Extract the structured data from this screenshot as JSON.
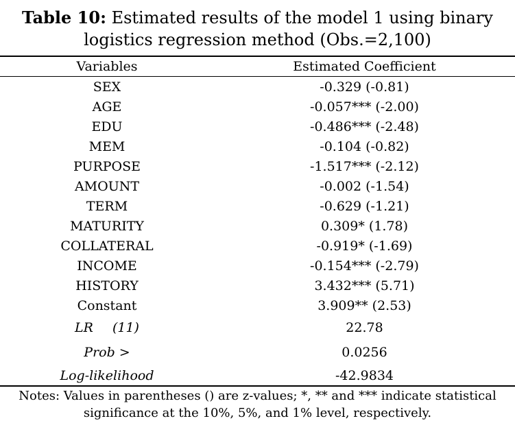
{
  "caption": {
    "label": "Table 10:",
    "line1": "Estimated results of the model 1 using binary",
    "line2": "logistics regression method (Obs.=2,100)"
  },
  "headers": {
    "variables": "Variables",
    "coefficient": "Estimated Coefficient"
  },
  "rows": [
    {
      "variable": "SEX",
      "coefficient": "-0.329 (-0.81)"
    },
    {
      "variable": "AGE",
      "coefficient": "-0.057*** (-2.00)"
    },
    {
      "variable": "EDU",
      "coefficient": "-0.486*** (-2.48)"
    },
    {
      "variable": "MEM",
      "coefficient": "-0.104 (-0.82)"
    },
    {
      "variable": "PURPOSE",
      "coefficient": "-1.517*** (-2.12)"
    },
    {
      "variable": "AMOUNT",
      "coefficient": "-0.002 (-1.54)"
    },
    {
      "variable": "TERM",
      "coefficient": "-0.629 (-1.21)"
    },
    {
      "variable": "MATURITY",
      "coefficient": "0.309* (1.78)"
    },
    {
      "variable": "COLLATERAL",
      "coefficient": "-0.919* (-1.69)"
    },
    {
      "variable": "INCOME",
      "coefficient": "-0.154*** (-2.79)"
    },
    {
      "variable": "HISTORY",
      "coefficient": "3.432*** (5.71)"
    },
    {
      "variable": "Constant",
      "coefficient": "3.909** (2.53)"
    }
  ],
  "stats": {
    "lr_label": "LR",
    "lr_df": "(11)",
    "lr_value": "22.78",
    "prob_label": "Prob >",
    "prob_value": "0.0256",
    "loglik_label": "Log-likelihood",
    "loglik_value": "-42.9834"
  },
  "notes": {
    "line1": "Notes: Values in parentheses () are z-values; *, ** and *** indicate statistical",
    "line2": "significance at the 10%, 5%, and 1% level, respectively."
  }
}
